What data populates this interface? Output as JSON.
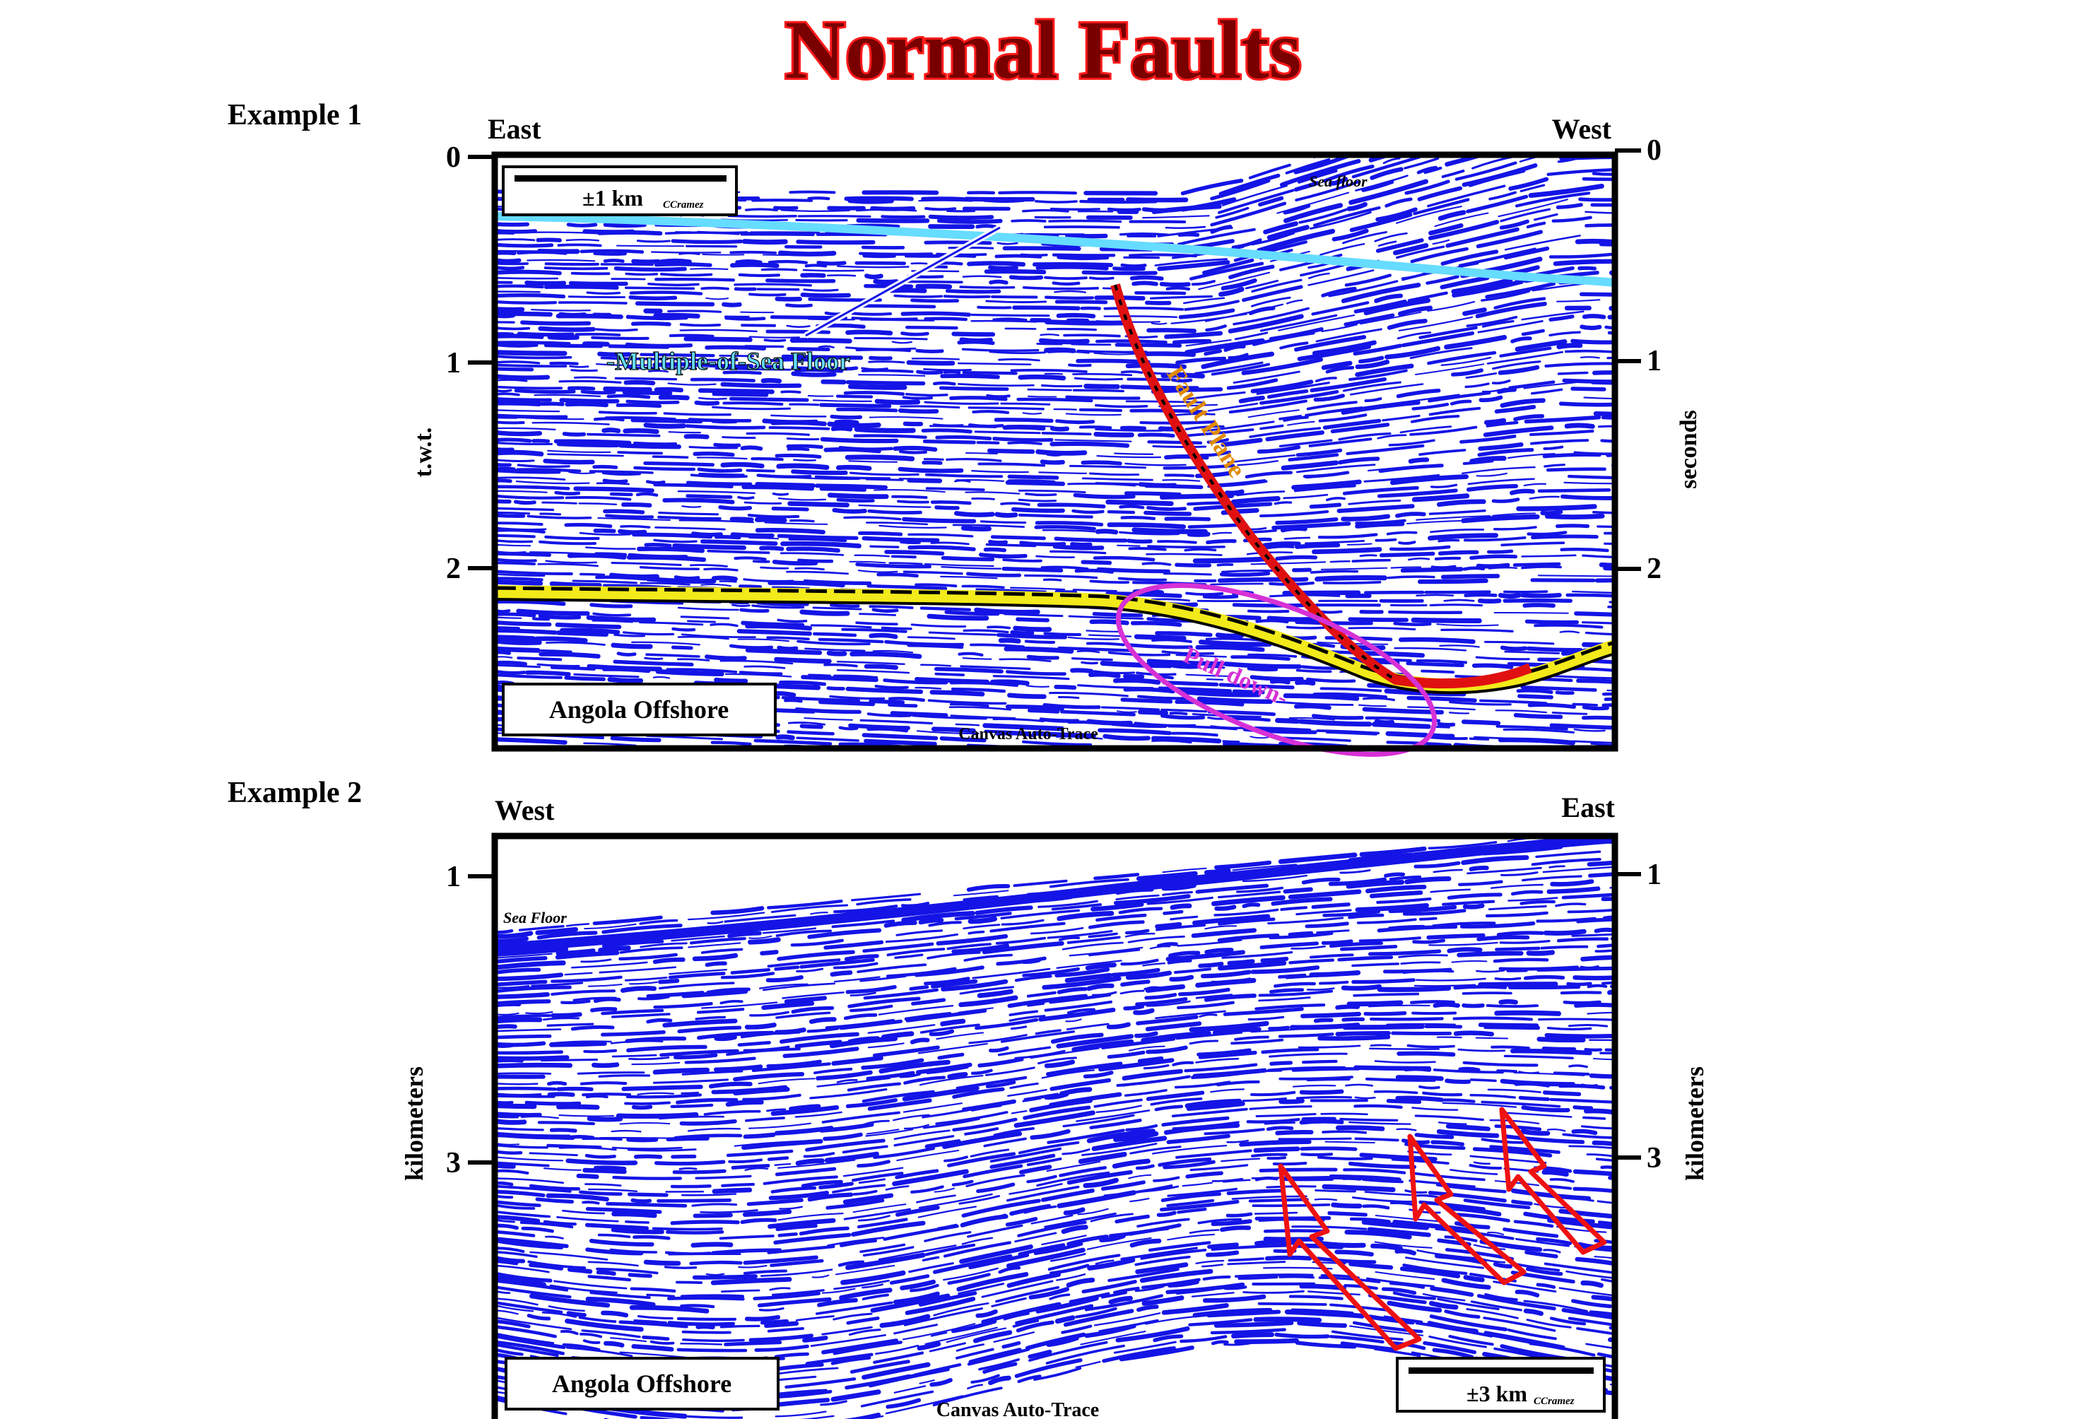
{
  "title": "Normal Faults",
  "colors": {
    "title_fill": "#7a0000",
    "title_outline": "#ff1a1a",
    "reflector_blue": "#1414e6",
    "multiple_cyan": "#66dcff",
    "horizon_yellow": "#f2ea1a",
    "fault_red": "#e01010",
    "pulldown_magenta": "#d631d6",
    "fault_label_orange": "#e08a00",
    "arrow_red": "#ee1111"
  },
  "example1": {
    "heading": "Example 1",
    "left_direction": "East",
    "right_direction": "West",
    "left_axis_label": "t.w.t.",
    "right_axis_label": "seconds",
    "left_ticks": [
      "0",
      "1",
      "2"
    ],
    "right_ticks": [
      "0",
      "1",
      "2"
    ],
    "scale_label": "±1 km",
    "credit": "CCramez",
    "sea_floor_label": "Sea floor",
    "multiple_label": "-Multiple-of-Sea Floor",
    "fault_label": "Fault Plane",
    "pulldown_label": "Pull down-",
    "location_label": "Angola Offshore",
    "footer_label": "Canvas Auto-Trace"
  },
  "example2": {
    "heading": "Example 2",
    "left_direction": "West",
    "right_direction": "East",
    "left_axis_label": "kilometers",
    "right_axis_label": "kilometers",
    "left_ticks": [
      "1",
      "3"
    ],
    "right_ticks": [
      "1",
      "3"
    ],
    "sea_floor_label": "Sea Floor",
    "scale_label": "±3 km",
    "credit": "CCramez",
    "location_label": "Angola Offshore",
    "footer_label": "Canvas Auto-Trace"
  }
}
